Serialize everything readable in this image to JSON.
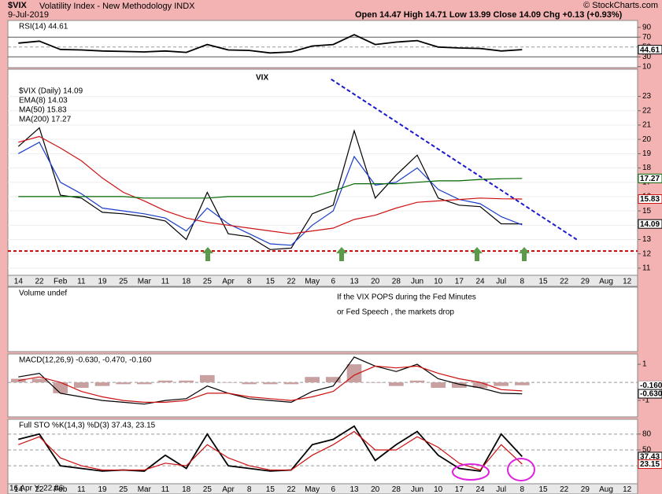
{
  "header": {
    "symbol": "$VIX",
    "name": "Volatility Index - New Methodology INDX",
    "date": "9-Jul-2019",
    "quote": "Open 14.47 High 14.71 Low 13.99 Close 14.09 Chg +0.13 (+0.93%)",
    "copyright": "© StockCharts.com",
    "crosshair": "16 Apr Y: 22.86"
  },
  "chart_data": [
    {
      "type": "line",
      "categories": [
        "14",
        "22",
        "Feb",
        "11",
        "19",
        "25",
        "Mar",
        "11",
        "18",
        "25",
        "Apr",
        "8",
        "15",
        "22",
        "May",
        "6",
        "13",
        "20",
        "28",
        "Jun",
        "10",
        "17",
        "24",
        "Jul",
        "8",
        "15",
        "22",
        "29",
        "Aug",
        "12"
      ],
      "series": [
        {
          "name": "$VIX (Daily) 14.09",
          "color": "#000000",
          "last_label": "14.09",
          "values": [
            19.5,
            20.8,
            16.1,
            15.9,
            14.9,
            14.8,
            14.6,
            14.3,
            13.0,
            16.3,
            13.4,
            13.2,
            12.3,
            12.4,
            14.8,
            15.4,
            20.6,
            15.9,
            17.5,
            18.9,
            15.9,
            15.4,
            15.3,
            14.1,
            14.09,
            null,
            null,
            null,
            null,
            null
          ]
        },
        {
          "name": "EMA(8) 14.03",
          "color": "#1a3ccc",
          "values": [
            19.0,
            19.8,
            17.0,
            16.2,
            15.2,
            15.0,
            14.8,
            14.5,
            13.6,
            15.2,
            14.1,
            13.4,
            12.7,
            12.6,
            14.0,
            15.0,
            18.8,
            16.8,
            17.0,
            18.0,
            16.5,
            15.8,
            15.5,
            14.6,
            14.03,
            null,
            null,
            null,
            null,
            null
          ]
        },
        {
          "name": "MA(50) 15.83",
          "color": "#cc1111",
          "last_label": "15.83",
          "values": [
            19.8,
            20.2,
            19.4,
            18.5,
            17.3,
            16.3,
            15.7,
            15.0,
            14.5,
            14.2,
            14.0,
            13.8,
            13.6,
            13.4,
            13.6,
            13.8,
            14.4,
            14.7,
            15.2,
            15.6,
            15.7,
            15.8,
            15.9,
            15.85,
            15.83,
            null,
            null,
            null,
            null,
            null
          ]
        },
        {
          "name": "MA(200) 17.27",
          "color": "#006600",
          "last_label": "17.27",
          "values": [
            16.0,
            16.0,
            16.0,
            16.0,
            16.0,
            16.0,
            15.9,
            15.9,
            15.9,
            15.9,
            16.0,
            16.0,
            16.0,
            16.0,
            16.0,
            16.4,
            16.9,
            16.9,
            16.9,
            17.0,
            17.1,
            17.1,
            17.2,
            17.25,
            17.27,
            null,
            null,
            null,
            null,
            null
          ]
        }
      ],
      "ylim": [
        10.5,
        24.9
      ],
      "yticks": [
        11,
        12,
        13,
        14,
        15,
        16,
        17,
        18,
        19,
        20,
        21,
        22,
        23
      ],
      "grid": true,
      "hlines": [
        {
          "value": 12.2,
          "color": "#cc0000",
          "dashed": true
        }
      ],
      "trendline": {
        "x": [
          14.9,
          26.6
        ],
        "values": [
          24.2,
          13.0
        ],
        "color": "#1a1acc"
      },
      "annotations": [
        "VIX"
      ]
    },
    {
      "type": "line",
      "series": [
        {
          "name": "RSI(14) 44.61",
          "color": "#000000",
          "last_label": "44.61",
          "values": [
            58,
            62,
            45,
            44,
            42,
            41,
            40,
            42,
            39,
            55,
            44,
            43,
            38,
            40,
            52,
            55,
            75,
            55,
            60,
            63,
            50,
            48,
            47,
            42,
            44.61,
            null,
            null,
            null,
            null,
            null
          ]
        }
      ],
      "ylim": [
        8,
        104
      ],
      "yticks": [
        90,
        70,
        50,
        30,
        10
      ],
      "grid": false,
      "hlines": [
        {
          "value": 70,
          "color": "#555555",
          "dashed": false
        },
        {
          "value": 50,
          "color": "#999999",
          "dashed": true
        },
        {
          "value": 30,
          "color": "#555555",
          "dashed": false
        }
      ]
    },
    {
      "type": "bar",
      "title": "Volume undef",
      "annotations": [
        "If the VIX POPS during the Fed Minutes",
        "or Fed Speech , the markets drop"
      ]
    },
    {
      "type": "line",
      "title": "MACD(12,26,9) -0.630, -0.470, -0.160",
      "series": [
        {
          "type": "bar",
          "color": "#c8a0a0",
          "last_label": "-0.160",
          "values": [
            0.2,
            0.2,
            -0.6,
            -0.3,
            -0.2,
            -0.1,
            -0.1,
            0.1,
            0.1,
            0.4,
            0.0,
            -0.1,
            -0.1,
            -0.1,
            0.3,
            0.3,
            1.0,
            0.0,
            -0.2,
            0.1,
            -0.3,
            -0.3,
            -0.3,
            -0.2,
            -0.16,
            null,
            null,
            null,
            null,
            null
          ]
        },
        {
          "color": "#000000",
          "last_label": "-0.630",
          "values": [
            0.3,
            0.5,
            -0.6,
            -0.8,
            -1.0,
            -1.1,
            -1.2,
            -1.0,
            -0.9,
            -0.2,
            -0.6,
            -0.9,
            -1.0,
            -1.1,
            -0.5,
            -0.2,
            1.4,
            0.9,
            0.6,
            1.0,
            0.2,
            -0.1,
            -0.3,
            -0.6,
            -0.63,
            null,
            null,
            null,
            null,
            null
          ]
        },
        {
          "color": "#cc1111",
          "values": [
            0.1,
            0.3,
            0.0,
            -0.5,
            -0.8,
            -1.0,
            -1.1,
            -1.1,
            -1.0,
            -0.6,
            -0.6,
            -0.8,
            -0.9,
            -1.0,
            -0.8,
            -0.5,
            0.4,
            0.9,
            0.8,
            0.9,
            0.5,
            0.2,
            0.0,
            -0.4,
            -0.47,
            null,
            null,
            null,
            null,
            null
          ]
        }
      ],
      "ylim": [
        -1.91,
        1.57
      ],
      "yticks": [
        1,
        -1
      ],
      "grid": false,
      "hlines": [
        {
          "value": 0,
          "color": "#999999",
          "dashed": true
        }
      ]
    },
    {
      "type": "line",
      "title": "Full STO %K(14,3) %D(3) 37.43, 23.15",
      "series": [
        {
          "color": "#000000",
          "last_label": "37.43",
          "values": [
            70,
            80,
            20,
            15,
            10,
            12,
            10,
            40,
            15,
            80,
            20,
            15,
            10,
            12,
            60,
            70,
            95,
            30,
            60,
            85,
            40,
            15,
            10,
            80,
            37.43,
            null,
            null,
            null,
            null,
            null
          ]
        },
        {
          "color": "#cc1111",
          "last_label": "23.15",
          "values": [
            60,
            75,
            35,
            20,
            12,
            12,
            12,
            25,
            20,
            60,
            35,
            20,
            12,
            12,
            40,
            60,
            85,
            50,
            50,
            75,
            55,
            25,
            12,
            60,
            23.15,
            null,
            null,
            null,
            null,
            null
          ]
        }
      ],
      "ylim": [
        -14,
        108
      ],
      "yticks": [
        80,
        50,
        20
      ],
      "grid": false,
      "hlines": [
        {
          "value": 80,
          "color": "#999999",
          "dashed": true
        },
        {
          "value": 50,
          "color": "#999999",
          "dashed": true
        },
        {
          "value": 20,
          "color": "#999999",
          "dashed": true
        }
      ]
    }
  ]
}
